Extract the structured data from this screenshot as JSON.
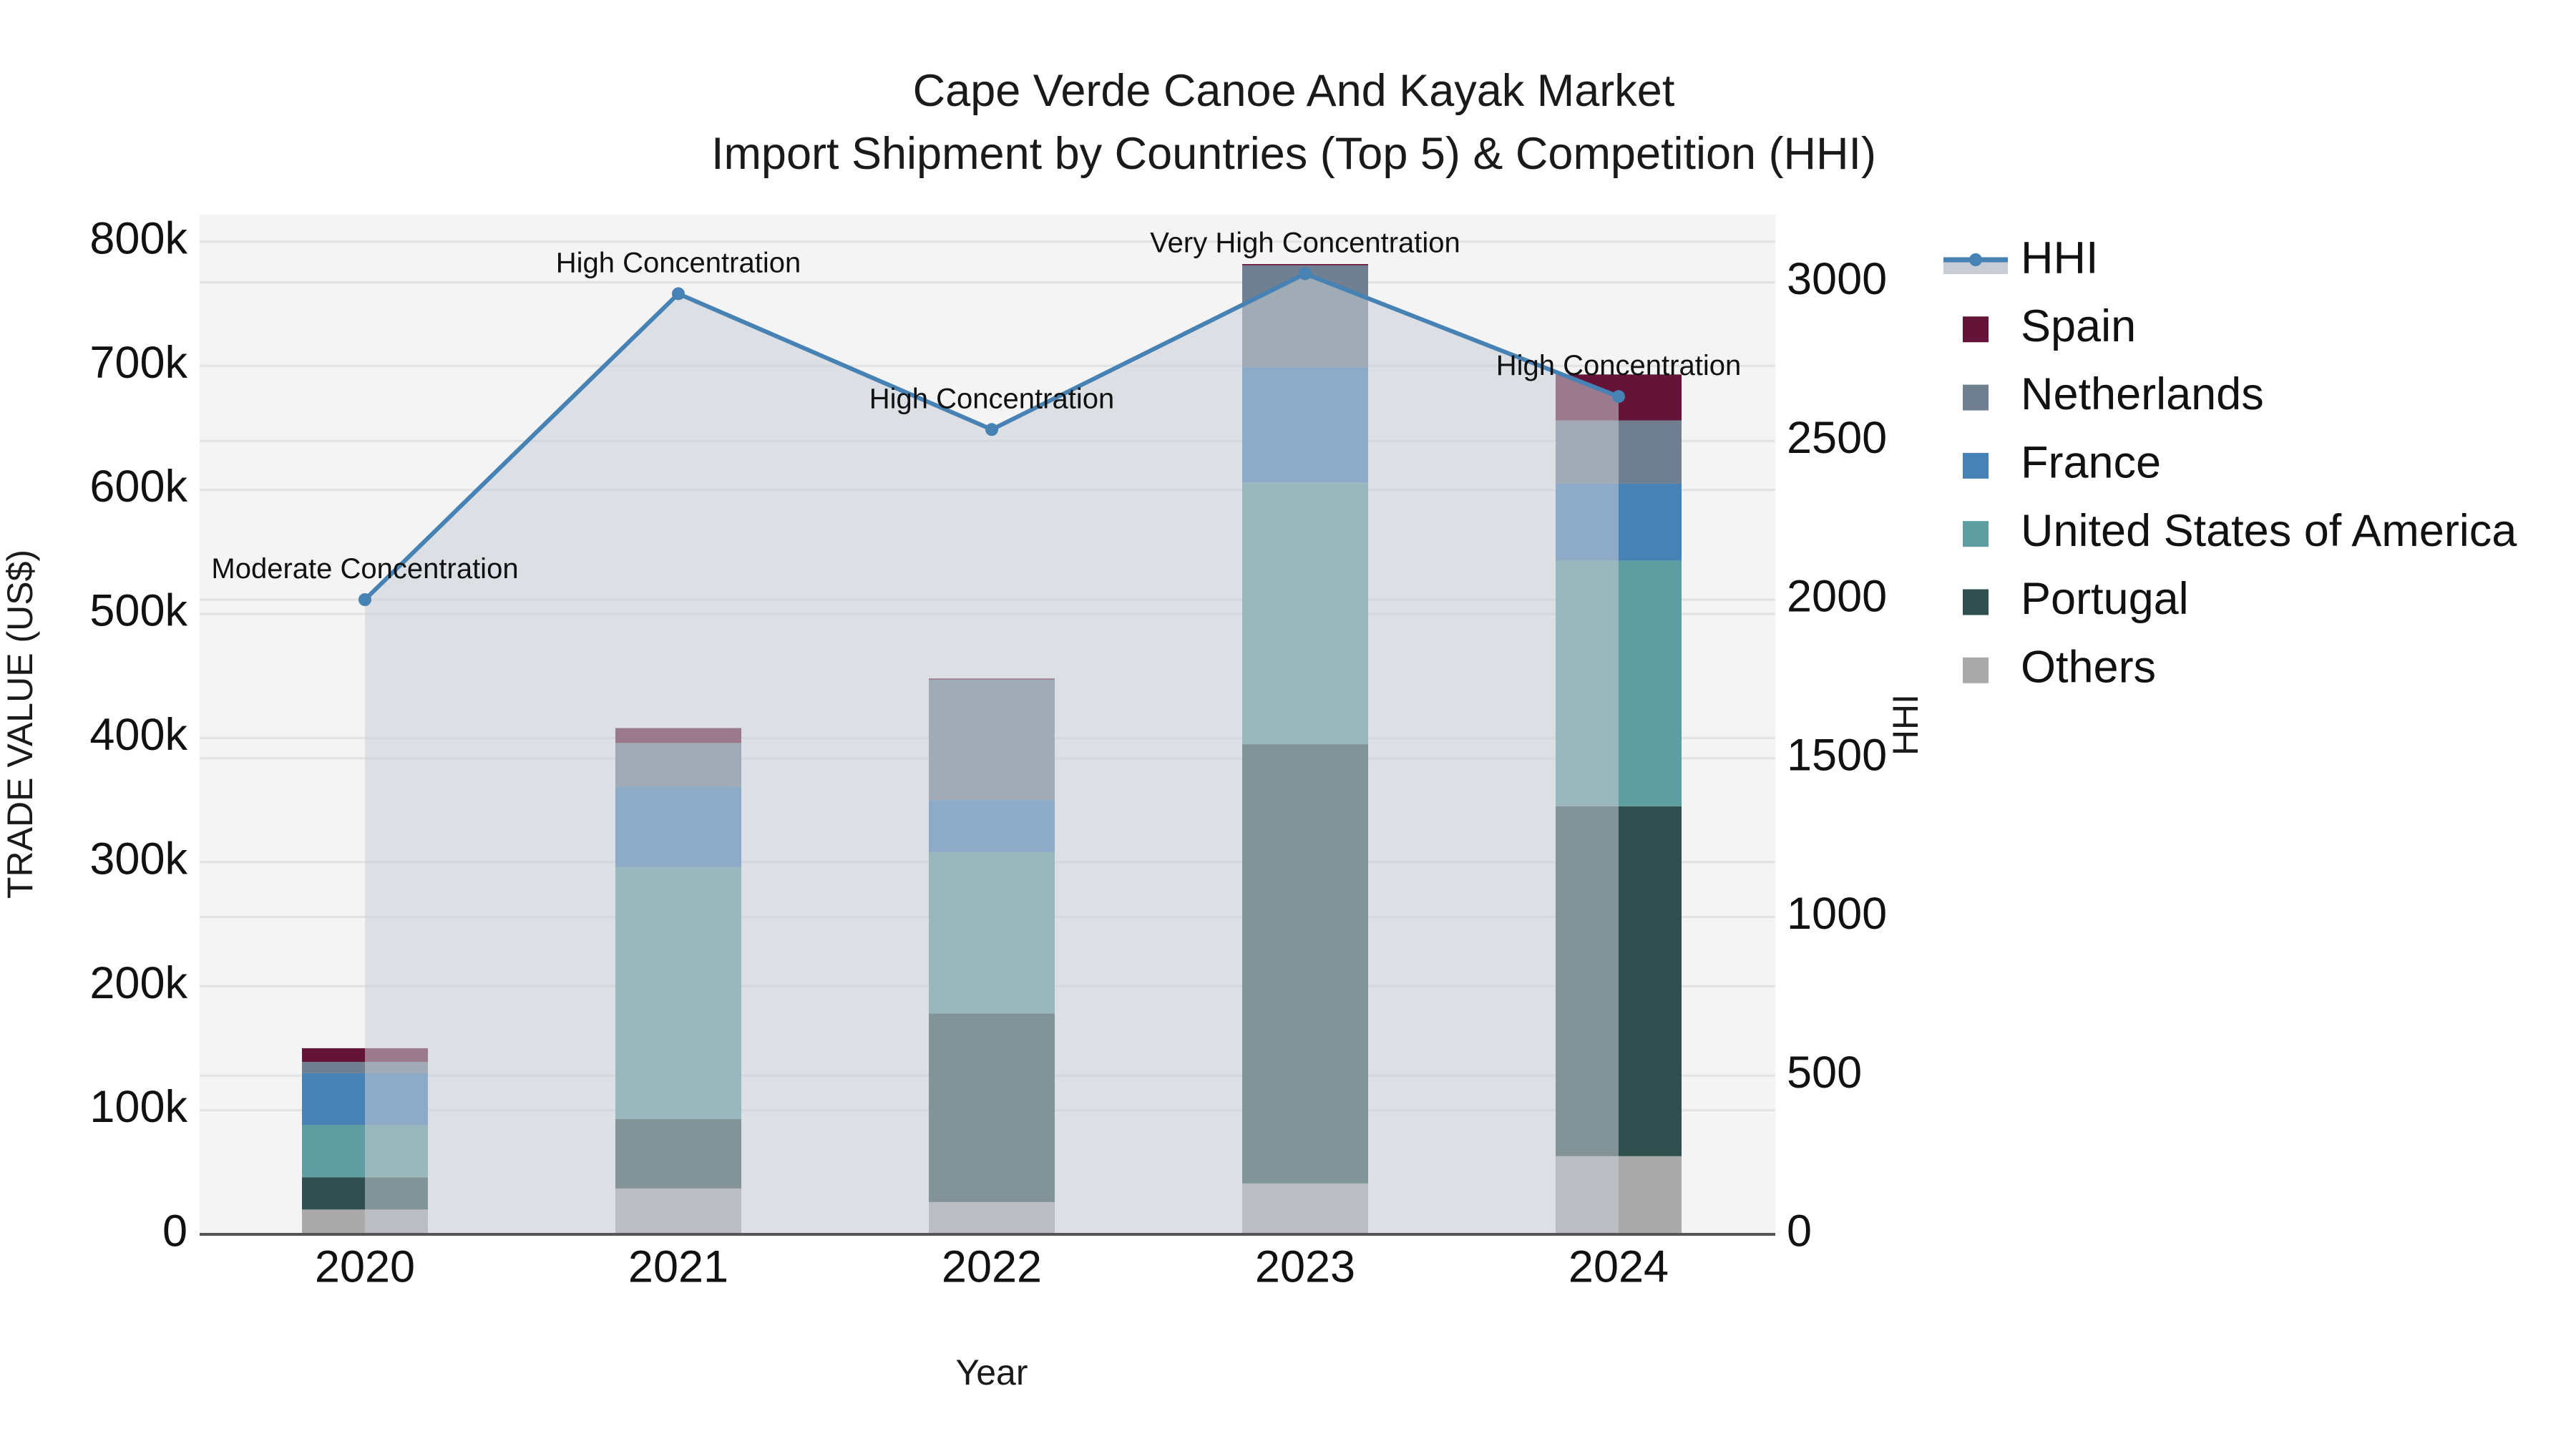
{
  "chart_data": {
    "type": "bar",
    "subtype": "stacked bar + line (dual axis)",
    "title": "Cape Verde Canoe And Kayak Market",
    "subtitle": "Import Shipment by Countries (Top 5) & Competition (HHI)",
    "xlabel": "Year",
    "ylabel": "TRADE VALUE (US$)",
    "y2label": "HHI",
    "categories": [
      "2020",
      "2021",
      "2022",
      "2023",
      "2024"
    ],
    "ylim": [
      0,
      820000
    ],
    "y_ticks": [
      0,
      100000,
      200000,
      300000,
      400000,
      500000,
      600000,
      700000,
      800000
    ],
    "y_tick_labels": [
      "0",
      "100k",
      "200k",
      "300k",
      "400k",
      "500k",
      "600k",
      "700k",
      "800k"
    ],
    "y2lim": [
      0,
      3210
    ],
    "y2_ticks": [
      0,
      500,
      1000,
      1500,
      2000,
      2500,
      3000
    ],
    "y2_tick_labels": [
      "0",
      "500",
      "1000",
      "1500",
      "2000",
      "2500",
      "3000"
    ],
    "grid": true,
    "legend_position": "right",
    "series": [
      {
        "name": "Others",
        "color": "#A9A9A9",
        "values": [
          20000,
          37000,
          26000,
          41000,
          63000
        ]
      },
      {
        "name": "Portugal",
        "color": "#2F4F4F",
        "values": [
          26000,
          56000,
          152000,
          354000,
          282000
        ]
      },
      {
        "name": "United States of America",
        "color": "#5F9EA0",
        "values": [
          42000,
          203000,
          130000,
          211000,
          198000
        ]
      },
      {
        "name": "France",
        "color": "#4682B4",
        "values": [
          42000,
          65000,
          42000,
          93000,
          62000
        ]
      },
      {
        "name": "Netherlands",
        "color": "#708090",
        "values": [
          9000,
          35000,
          97000,
          82000,
          51000
        ]
      },
      {
        "name": "Spain",
        "color": "#641436",
        "values": [
          11000,
          12000,
          1000,
          1000,
          37000
        ]
      }
    ],
    "line_series": {
      "name": "HHI",
      "axis": "y2",
      "color": "#4682B4",
      "fill_color": "#C8CDD5",
      "values": [
        2000,
        2964,
        2536,
        3027,
        2640
      ]
    },
    "annotations": [
      {
        "category": "2020",
        "text": "Moderate Concentration"
      },
      {
        "category": "2021",
        "text": "High Concentration"
      },
      {
        "category": "2022",
        "text": "High Concentration"
      },
      {
        "category": "2023",
        "text": "Very High Concentration"
      },
      {
        "category": "2024",
        "text": "High Concentration"
      }
    ]
  },
  "legend": {
    "items": [
      {
        "label": "HHI",
        "kind": "line",
        "color": "#4682B4"
      },
      {
        "label": "Spain",
        "kind": "box",
        "color": "#641436"
      },
      {
        "label": "Netherlands",
        "kind": "box",
        "color": "#708090"
      },
      {
        "label": "France",
        "kind": "box",
        "color": "#4682B4"
      },
      {
        "label": "United States of America",
        "kind": "box",
        "color": "#5F9EA0"
      },
      {
        "label": "Portugal",
        "kind": "box",
        "color": "#2F4F4F"
      },
      {
        "label": "Others",
        "kind": "box",
        "color": "#A9A9A9"
      }
    ]
  },
  "colors": {
    "plot_background": "#F4F4F4",
    "grid": "#E2E2E2",
    "axis_line": "#555555",
    "hhi_area_fill": "#C8CDD5"
  }
}
